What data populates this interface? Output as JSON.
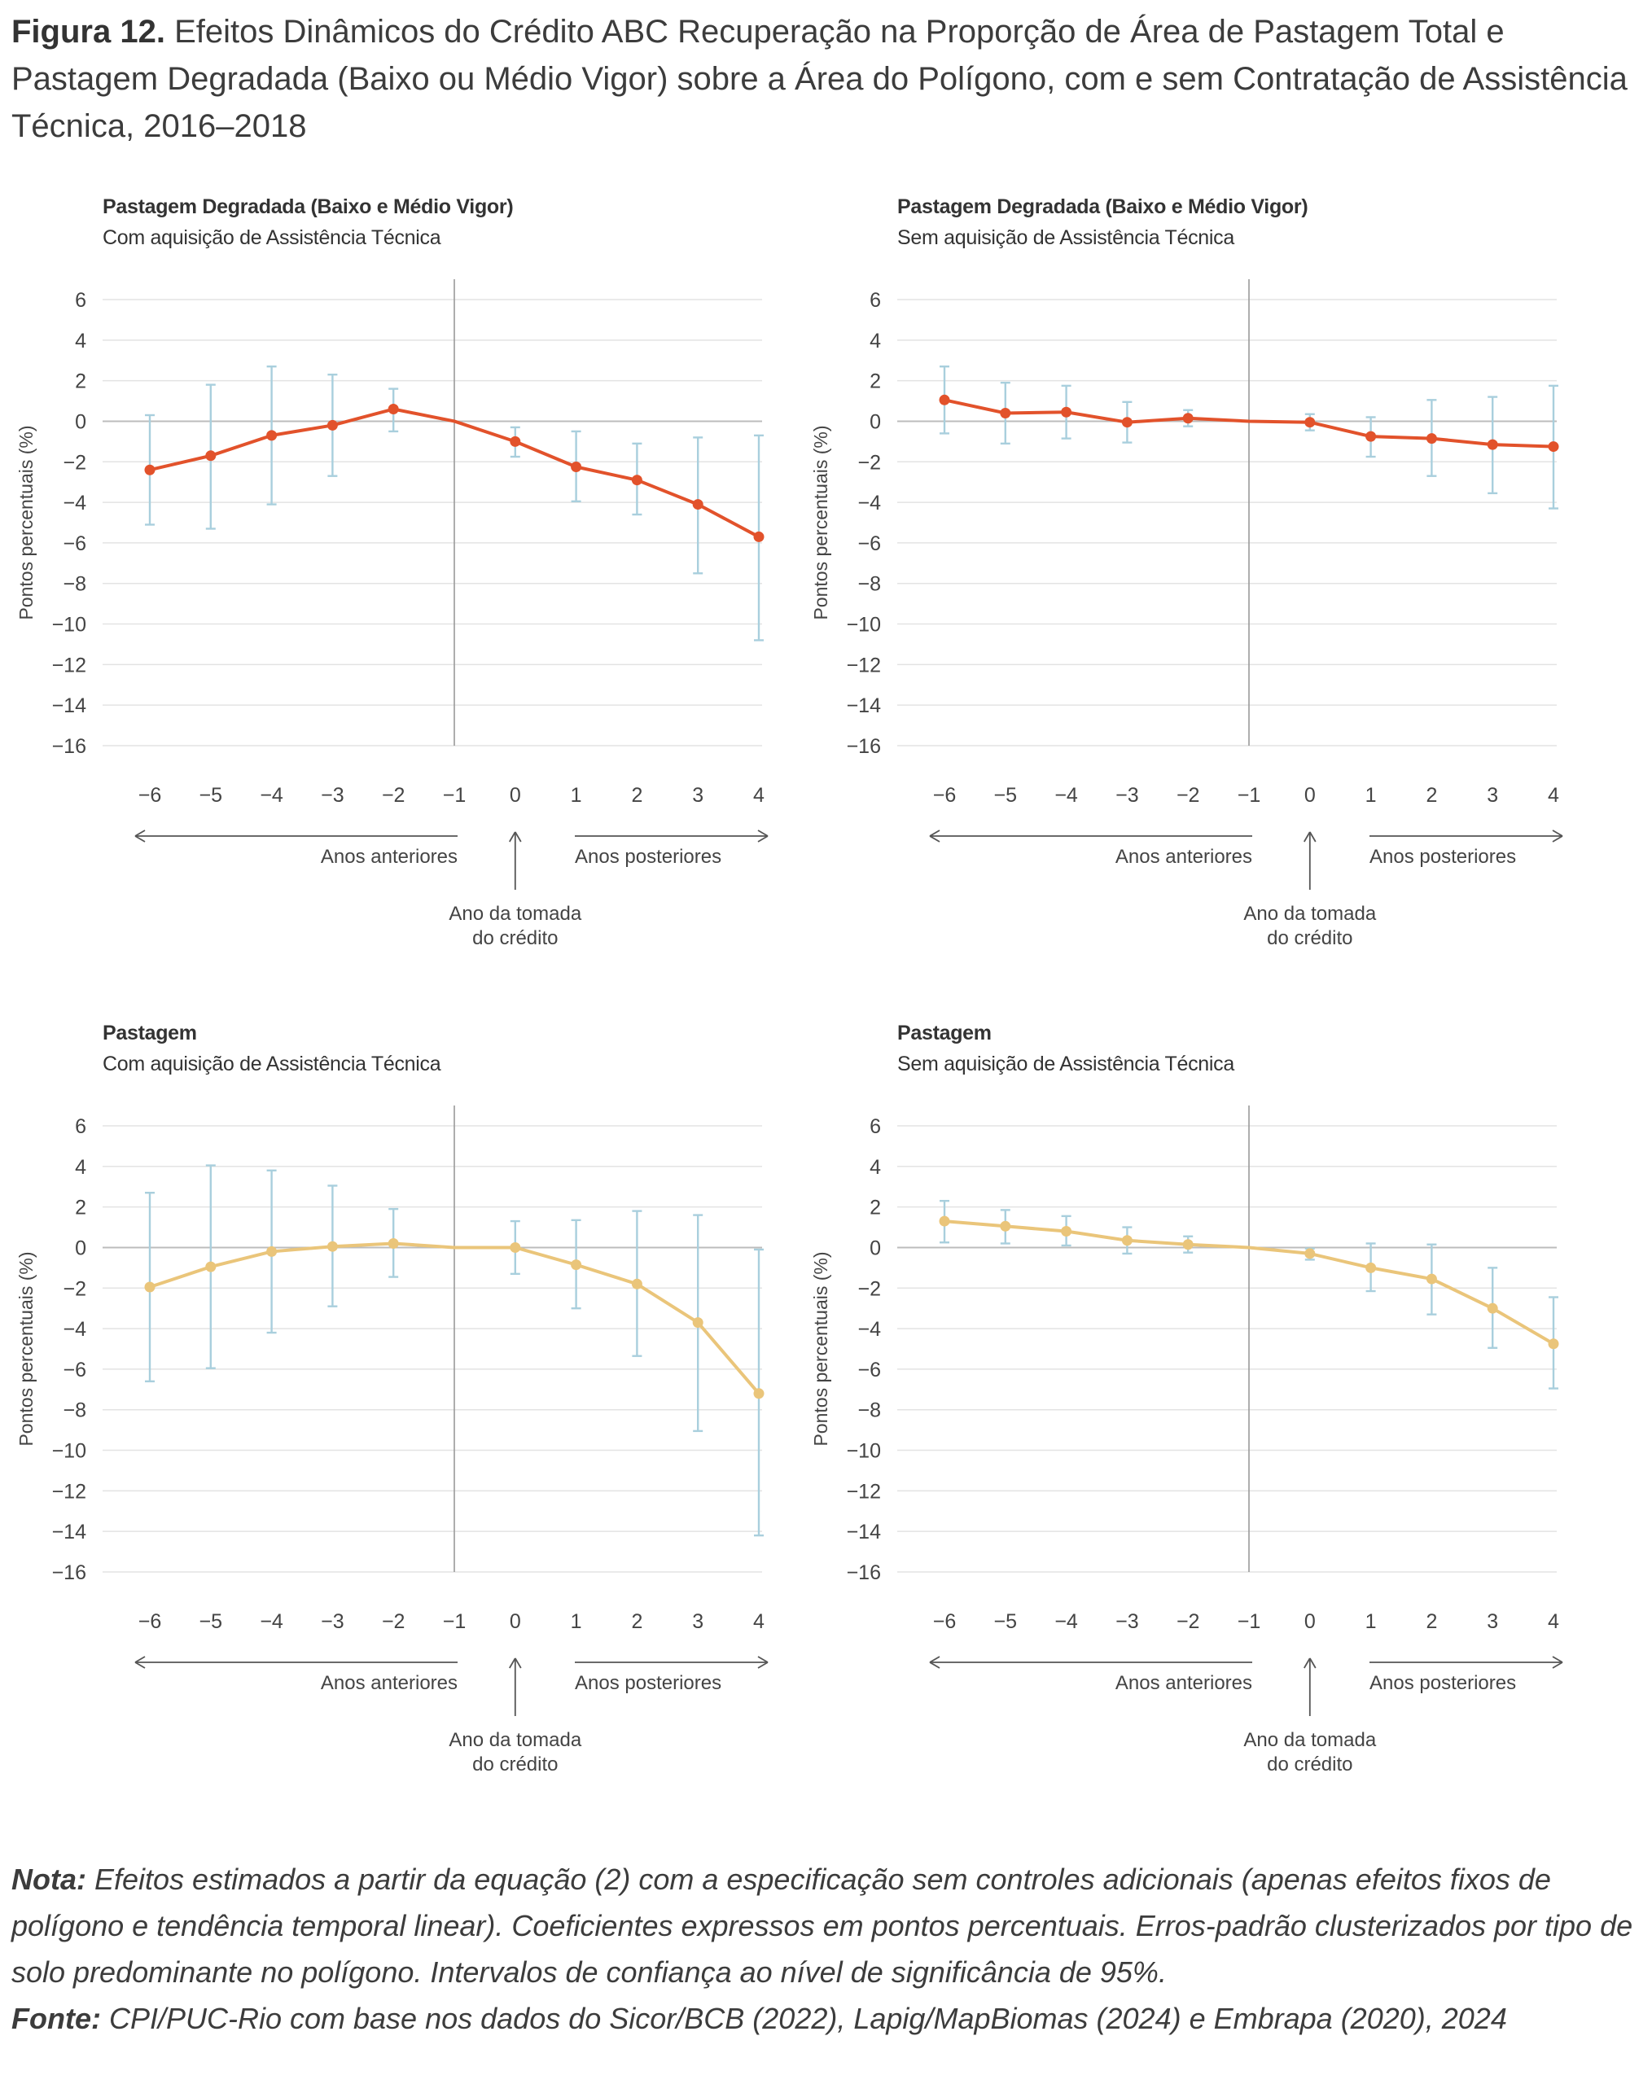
{
  "figure": {
    "label": "Figura 12.",
    "title": "Efeitos Dinâmicos do Crédito ABC Recuperação na Proporção de Área de Pastagem Total e Pastagem Degradada (Baixo ou Médio Vigor) sobre a Área do Polígono, com e sem Contratação de Assistência Técnica, 2016–2018"
  },
  "colors": {
    "degradada": "#e2522b",
    "pastagem": "#eac57a",
    "error_bar": "#a9cfdd",
    "grid": "#e3e3e3",
    "zero": "#bcbcbc"
  },
  "annotations": {
    "before": "Anos anteriores",
    "after": "Anos posteriores",
    "event_line1": "Ano da tomada",
    "event_line2": "do crédito"
  },
  "chart_data": [
    {
      "type": "line",
      "title": "Pastagem Degradada (Baixo e Médio Vigor)",
      "subtitle": "Com aquisição de Assistência Técnica",
      "ylabel": "Pontos percentuais (%)",
      "ylim": [
        -16,
        6
      ],
      "yticks": [
        "6",
        "4",
        "2",
        "0",
        "−2",
        "−4",
        "−6",
        "−8",
        "−10",
        "−12",
        "−14",
        "−16"
      ],
      "x": [
        -6,
        -5,
        -4,
        -3,
        -2,
        -1,
        0,
        1,
        2,
        3,
        4
      ],
      "xticks": [
        "−6",
        "−5",
        "−4",
        "−3",
        "−2",
        "−1",
        "0",
        "1",
        "2",
        "3",
        "4"
      ],
      "event_x": -1,
      "color": "#e2522b",
      "values": [
        -2.4,
        -1.7,
        -0.7,
        -0.2,
        0.6,
        0,
        -1.0,
        -2.25,
        -2.9,
        -4.1,
        -5.7
      ],
      "ci_low": [
        -5.1,
        -5.3,
        -4.1,
        -2.7,
        -0.5,
        null,
        -1.75,
        -3.95,
        -4.6,
        -7.5,
        -10.8
      ],
      "ci_high": [
        0.3,
        1.8,
        2.7,
        2.3,
        1.6,
        null,
        -0.3,
        -0.5,
        -1.1,
        -0.8,
        -0.7
      ]
    },
    {
      "type": "line",
      "title": "Pastagem Degradada (Baixo e Médio Vigor)",
      "subtitle": "Sem aquisição de Assistência Técnica",
      "ylabel": "Pontos percentuais (%)",
      "ylim": [
        -16,
        6
      ],
      "yticks": [
        "6",
        "4",
        "2",
        "0",
        "−2",
        "−4",
        "−6",
        "−8",
        "−10",
        "−12",
        "−14",
        "−16"
      ],
      "x": [
        -6,
        -5,
        -4,
        -3,
        -2,
        -1,
        0,
        1,
        2,
        3,
        4
      ],
      "xticks": [
        "−6",
        "−5",
        "−4",
        "−3",
        "−2",
        "−1",
        "0",
        "1",
        "2",
        "3",
        "4"
      ],
      "event_x": -1,
      "color": "#e2522b",
      "values": [
        1.05,
        0.4,
        0.45,
        -0.05,
        0.15,
        0,
        -0.05,
        -0.75,
        -0.85,
        -1.15,
        -1.25
      ],
      "ci_low": [
        -0.6,
        -1.1,
        -0.85,
        -1.05,
        -0.25,
        null,
        -0.45,
        -1.75,
        -2.7,
        -3.55,
        -4.3
      ],
      "ci_high": [
        2.7,
        1.9,
        1.75,
        0.95,
        0.55,
        null,
        0.35,
        0.2,
        1.05,
        1.2,
        1.75
      ]
    },
    {
      "type": "line",
      "title": "Pastagem",
      "subtitle": "Com aquisição de Assistência Técnica",
      "ylabel": "Pontos percentuais (%)",
      "ylim": [
        -16,
        6
      ],
      "yticks": [
        "6",
        "4",
        "2",
        "0",
        "−2",
        "−4",
        "−6",
        "−8",
        "−10",
        "−12",
        "−14",
        "−16"
      ],
      "x": [
        -6,
        -5,
        -4,
        -3,
        -2,
        -1,
        0,
        1,
        2,
        3,
        4
      ],
      "xticks": [
        "−6",
        "−5",
        "−4",
        "−3",
        "−2",
        "−1",
        "0",
        "1",
        "2",
        "3",
        "4"
      ],
      "event_x": -1,
      "color": "#eac57a",
      "values": [
        -1.95,
        -0.95,
        -0.2,
        0.05,
        0.2,
        0,
        0,
        -0.85,
        -1.8,
        -3.7,
        -7.2
      ],
      "ci_low": [
        -6.6,
        -5.95,
        -4.2,
        -2.9,
        -1.45,
        null,
        -1.3,
        -3.0,
        -5.35,
        -9.05,
        -14.2
      ],
      "ci_high": [
        2.7,
        4.05,
        3.8,
        3.05,
        1.9,
        null,
        1.3,
        1.35,
        1.8,
        1.6,
        -0.1
      ]
    },
    {
      "type": "line",
      "title": "Pastagem",
      "subtitle": "Sem aquisição de Assistência Técnica",
      "ylabel": "Pontos percentuais (%)",
      "ylim": [
        -16,
        6
      ],
      "yticks": [
        "6",
        "4",
        "2",
        "0",
        "−2",
        "−4",
        "−6",
        "−8",
        "−10",
        "−12",
        "−14",
        "−16"
      ],
      "x": [
        -6,
        -5,
        -4,
        -3,
        -2,
        -1,
        0,
        1,
        2,
        3,
        4
      ],
      "xticks": [
        "−6",
        "−5",
        "−4",
        "−3",
        "−2",
        "−1",
        "0",
        "1",
        "2",
        "3",
        "4"
      ],
      "event_x": -1,
      "color": "#eac57a",
      "values": [
        1.3,
        1.05,
        0.8,
        0.35,
        0.15,
        0,
        -0.3,
        -1.0,
        -1.55,
        -3.0,
        -4.75
      ],
      "ci_low": [
        0.25,
        0.2,
        0.1,
        -0.3,
        -0.25,
        null,
        -0.6,
        -2.15,
        -3.3,
        -4.95,
        -6.95
      ],
      "ci_high": [
        2.3,
        1.85,
        1.55,
        1.0,
        0.55,
        null,
        -0.05,
        0.2,
        0.15,
        -1.0,
        -2.45
      ]
    }
  ],
  "footer": {
    "note_label": "Nota:",
    "note_text": " Efeitos estimados a partir da equação (2) com a especificação sem controles adicionais (apenas efeitos fixos de polígono e tendência temporal linear). Coeficientes expressos em pontos percentuais. Erros-padrão clusterizados por tipo de solo predominante no polígono. Intervalos de confiança ao nível de significância de 95%.",
    "source_label": "Fonte:",
    "source_text": " CPI/PUC-Rio com base nos dados do Sicor/BCB (2022), Lapig/MapBiomas (2024) e Embrapa (2020), 2024"
  }
}
